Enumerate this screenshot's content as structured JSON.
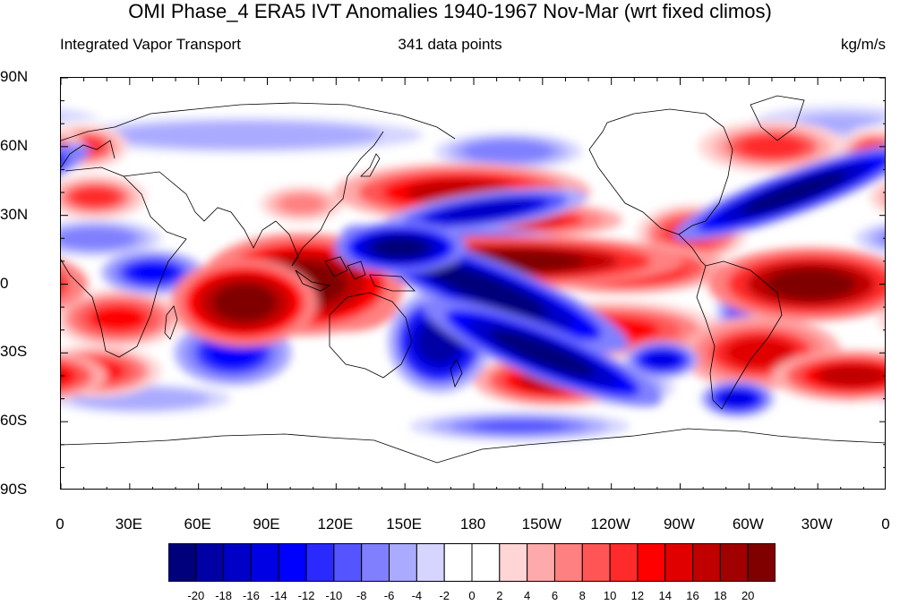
{
  "header": {
    "title": "OMI Phase_4 ERA5 IVT Anomalies 1940-1967 Nov-Mar (wrt fixed climos)",
    "left": "Integrated Vapor Transport",
    "center": "341 data points",
    "right": "kg/m/s"
  },
  "axes": {
    "lat_labels": [
      "90N",
      "60N",
      "30N",
      "0",
      "30S",
      "60S",
      "90S"
    ],
    "lat_values": [
      90,
      60,
      30,
      0,
      -30,
      -60,
      -90
    ],
    "lon_labels": [
      "0",
      "30E",
      "60E",
      "90E",
      "120E",
      "150E",
      "180",
      "150W",
      "120W",
      "90W",
      "60W",
      "30W",
      "0"
    ],
    "lon_values": [
      0,
      30,
      60,
      90,
      120,
      150,
      180,
      210,
      240,
      270,
      300,
      330,
      360
    ],
    "lon_range": [
      0,
      360
    ],
    "lat_range": [
      -90,
      90
    ]
  },
  "colorbar": {
    "levels": [
      "-20",
      "-18",
      "-16",
      "-14",
      "-12",
      "-10",
      "-8",
      "-6",
      "-4",
      "-2",
      "0",
      "2",
      "4",
      "6",
      "8",
      "10",
      "12",
      "14",
      "16",
      "18",
      "20"
    ],
    "colors": [
      "#00007a",
      "#0000a5",
      "#0000c7",
      "#0000e5",
      "#0000ff",
      "#2a2aff",
      "#5555ff",
      "#8080ff",
      "#aaaaff",
      "#d5d5ff",
      "#ffffff",
      "#ffffff",
      "#ffd5d5",
      "#ffaaaa",
      "#ff8080",
      "#ff5555",
      "#ff2a2a",
      "#ff0000",
      "#e00000",
      "#c00000",
      "#a00000",
      "#800000"
    ]
  },
  "chart_data": {
    "type": "heatmap",
    "title": "OMI Phase_4 ERA5 IVT Anomalies 1940-1967 Nov-Mar (wrt fixed climos)",
    "units": "kg/m/s",
    "xlim": [
      0,
      360
    ],
    "ylim": [
      -90,
      90
    ],
    "features": [
      {
        "lon": 105,
        "lat": 0,
        "rlon": 28,
        "rlat": 14,
        "value": 22
      },
      {
        "lon": 80,
        "lat": -8,
        "rlon": 20,
        "rlat": 12,
        "value": 22
      },
      {
        "lon": 125,
        "lat": -8,
        "rlon": 14,
        "rlat": 8,
        "value": 20
      },
      {
        "lon": 25,
        "lat": -15,
        "rlon": 18,
        "rlat": 8,
        "value": 12
      },
      {
        "lon": 195,
        "lat": 10,
        "rlon": 48,
        "rlat": 7,
        "value": 20
      },
      {
        "lon": 245,
        "lat": 7,
        "rlon": 28,
        "rlat": 7,
        "value": 16
      },
      {
        "lon": 175,
        "lat": 40,
        "rlon": 35,
        "rlat": 8,
        "value": 16
      },
      {
        "lon": 200,
        "lat": 28,
        "rlon": 28,
        "rlat": 5,
        "value": 14
      },
      {
        "lon": 327,
        "lat": 0,
        "rlon": 28,
        "rlat": 10,
        "value": 20
      },
      {
        "lon": 345,
        "lat": -40,
        "rlon": 22,
        "rlat": 7,
        "value": 16
      },
      {
        "lon": 215,
        "lat": -42,
        "rlon": 22,
        "rlat": 7,
        "value": 16
      },
      {
        "lon": 15,
        "lat": -38,
        "rlon": 18,
        "rlat": 7,
        "value": 12
      },
      {
        "lon": 305,
        "lat": -30,
        "rlon": 22,
        "rlat": 10,
        "value": 14
      },
      {
        "lon": 240,
        "lat": -20,
        "rlon": 30,
        "rlat": 8,
        "value": 12
      },
      {
        "lon": 275,
        "lat": 22,
        "rlon": 15,
        "rlat": 8,
        "value": 12
      },
      {
        "lon": 10,
        "lat": 60,
        "rlon": 12,
        "rlat": 6,
        "value": 10
      },
      {
        "lon": 15,
        "lat": 38,
        "rlon": 14,
        "rlat": 6,
        "value": 10
      },
      {
        "lon": 310,
        "lat": 60,
        "rlon": 20,
        "rlat": 7,
        "value": 10
      },
      {
        "lon": 355,
        "lat": 58,
        "rlon": 10,
        "rlat": 6,
        "value": 10
      },
      {
        "lon": 105,
        "lat": 35,
        "rlon": 14,
        "rlat": 6,
        "value": 6
      },
      {
        "lon": 185,
        "lat": -2,
        "rlon": 42,
        "rlat": 8,
        "value": -22,
        "angle": 22
      },
      {
        "lon": 210,
        "lat": -30,
        "rlon": 35,
        "rlat": 7,
        "value": -22,
        "angle": 22
      },
      {
        "lon": 165,
        "lat": -25,
        "rlon": 14,
        "rlat": 14,
        "value": -20
      },
      {
        "lon": 148,
        "lat": 16,
        "rlon": 18,
        "rlat": 7,
        "value": -22
      },
      {
        "lon": 185,
        "lat": 18,
        "rlon": 22,
        "rlat": 4,
        "value": -18
      },
      {
        "lon": 185,
        "lat": 32,
        "rlon": 28,
        "rlat": 5,
        "value": -18,
        "angle": -8
      },
      {
        "lon": 320,
        "lat": 40,
        "rlon": 35,
        "rlat": 6,
        "value": -22,
        "angle": -20
      },
      {
        "lon": 262,
        "lat": -33,
        "rlon": 10,
        "rlat": 5,
        "value": -16
      },
      {
        "lon": 295,
        "lat": -50,
        "rlon": 10,
        "rlat": 5,
        "value": -16
      },
      {
        "lon": 75,
        "lat": -30,
        "rlon": 16,
        "rlat": 9,
        "value": -14
      },
      {
        "lon": 40,
        "lat": 5,
        "rlon": 14,
        "rlat": 6,
        "value": -14
      },
      {
        "lon": 15,
        "lat": 20,
        "rlon": 18,
        "rlat": 5,
        "value": -8
      },
      {
        "lon": 35,
        "lat": -50,
        "rlon": 30,
        "rlat": 5,
        "value": -6
      },
      {
        "lon": 200,
        "lat": -62,
        "rlon": 30,
        "rlat": 4,
        "value": -10
      },
      {
        "lon": 195,
        "lat": 58,
        "rlon": 20,
        "rlat": 5,
        "value": -8
      },
      {
        "lon": 80,
        "lat": 65,
        "rlon": 60,
        "rlat": 6,
        "value": -6
      },
      {
        "lon": 245,
        "lat": -45,
        "rlon": 14,
        "rlat": 5,
        "value": -8
      },
      {
        "lon": 295,
        "lat": -12,
        "rlon": 6,
        "rlat": 10,
        "value": -10
      },
      {
        "lon": 340,
        "lat": 70,
        "rlon": 30,
        "rlat": 6,
        "value": -5
      }
    ]
  }
}
